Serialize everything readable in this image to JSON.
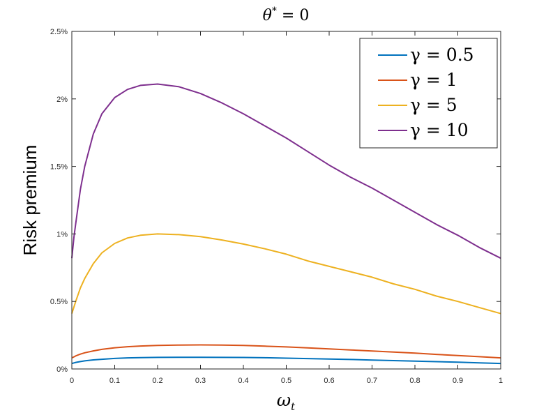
{
  "chart_data": {
    "type": "line",
    "title_parts": {
      "symbol": "θ",
      "superscript": "*",
      "rest": " = 0"
    },
    "xlabel_parts": {
      "symbol": "ω",
      "subscript": "t"
    },
    "ylabel": "Risk premium",
    "xlim": [
      0,
      1
    ],
    "ylim": [
      0,
      2.5
    ],
    "x_ticks": [
      0,
      0.1,
      0.2,
      0.3,
      0.4,
      0.5,
      0.6,
      0.7,
      0.8,
      0.9,
      1
    ],
    "x_tick_labels": [
      "0",
      "0.1",
      "0.2",
      "0.3",
      "0.4",
      "0.5",
      "0.6",
      "0.7",
      "0.8",
      "0.9",
      "1"
    ],
    "y_ticks": [
      0,
      0.5,
      1,
      1.5,
      2,
      2.5
    ],
    "y_tick_labels": [
      "0%",
      "0.5%",
      "1%",
      "1.5%",
      "2%",
      "2.5%"
    ],
    "grid": false,
    "legend_position": "top-right",
    "x": [
      0,
      0.005,
      0.01,
      0.02,
      0.03,
      0.05,
      0.07,
      0.1,
      0.13,
      0.16,
      0.2,
      0.25,
      0.3,
      0.35,
      0.4,
      0.45,
      0.5,
      0.55,
      0.6,
      0.65,
      0.7,
      0.75,
      0.8,
      0.85,
      0.9,
      0.95,
      1
    ],
    "series": [
      {
        "name": "γ = 0.5",
        "color": "#0072BD",
        "values": [
          0.041,
          0.045,
          0.049,
          0.055,
          0.06,
          0.067,
          0.072,
          0.078,
          0.082,
          0.084,
          0.086,
          0.087,
          0.087,
          0.086,
          0.085,
          0.083,
          0.08,
          0.077,
          0.074,
          0.07,
          0.066,
          0.062,
          0.058,
          0.054,
          0.05,
          0.045,
          0.041
        ]
      },
      {
        "name": "γ = 1",
        "color": "#D95319",
        "values": [
          0.082,
          0.09,
          0.098,
          0.11,
          0.12,
          0.134,
          0.145,
          0.157,
          0.165,
          0.17,
          0.174,
          0.177,
          0.178,
          0.177,
          0.174,
          0.169,
          0.163,
          0.156,
          0.149,
          0.141,
          0.133,
          0.125,
          0.117,
          0.108,
          0.099,
          0.091,
          0.082
        ]
      },
      {
        "name": "γ = 5",
        "color": "#EDB120",
        "values": [
          0.41,
          0.46,
          0.51,
          0.6,
          0.67,
          0.78,
          0.86,
          0.93,
          0.97,
          0.99,
          1.0,
          0.995,
          0.98,
          0.955,
          0.925,
          0.89,
          0.85,
          0.8,
          0.76,
          0.72,
          0.68,
          0.63,
          0.59,
          0.54,
          0.5,
          0.455,
          0.41
        ]
      },
      {
        "name": "γ = 10",
        "color": "#7E2F8E",
        "values": [
          0.82,
          0.98,
          1.1,
          1.33,
          1.5,
          1.74,
          1.89,
          2.01,
          2.07,
          2.1,
          2.11,
          2.09,
          2.04,
          1.97,
          1.89,
          1.8,
          1.71,
          1.61,
          1.51,
          1.42,
          1.34,
          1.25,
          1.16,
          1.07,
          0.99,
          0.9,
          0.82
        ]
      }
    ]
  }
}
